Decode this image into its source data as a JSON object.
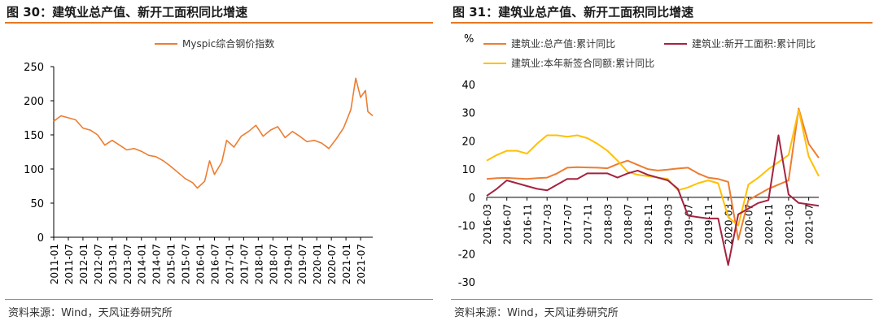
{
  "left": {
    "title": "图 30：建筑业总产值、新开工面积同比增速",
    "source": "资料来源：Wind，天风证券研究所"
  },
  "right": {
    "title": "图 31：建筑业总产值、新开工面积同比增速",
    "source": "资料来源：Wind，天风证券研究所"
  },
  "colors": {
    "accent": "#e87722",
    "series_orange": "#ED7D31",
    "series_red": "#A5233F",
    "series_yellow": "#FFC000"
  },
  "chart_data": [
    {
      "type": "line",
      "title": "",
      "ylim": [
        0,
        250
      ],
      "yticks": [
        0,
        50,
        100,
        150,
        200,
        250
      ],
      "xticks": [
        "2011-01",
        "2011-07",
        "2012-01",
        "2012-07",
        "2013-01",
        "2013-07",
        "2014-01",
        "2014-07",
        "2015-01",
        "2015-07",
        "2016-01",
        "2016-07",
        "2017-01",
        "2017-07",
        "2018-01",
        "2018-07",
        "2019-01",
        "2019-07",
        "2020-01",
        "2020-07",
        "2021-01",
        "2021-07"
      ],
      "legend_position": "top-center",
      "series": [
        {
          "name": "Myspic综合钢价指数",
          "x": [
            "2011-01",
            "2011-04",
            "2011-07",
            "2011-10",
            "2012-01",
            "2012-04",
            "2012-07",
            "2012-10",
            "2013-01",
            "2013-04",
            "2013-07",
            "2013-10",
            "2014-01",
            "2014-04",
            "2014-07",
            "2014-10",
            "2015-01",
            "2015-04",
            "2015-07",
            "2015-10",
            "2015-12",
            "2016-03",
            "2016-05",
            "2016-07",
            "2016-10",
            "2016-12",
            "2017-03",
            "2017-06",
            "2017-09",
            "2017-12",
            "2018-03",
            "2018-06",
            "2018-09",
            "2018-12",
            "2019-03",
            "2019-06",
            "2019-09",
            "2019-12",
            "2020-03",
            "2020-06",
            "2020-09",
            "2020-12",
            "2021-03",
            "2021-05",
            "2021-07",
            "2021-09",
            "2021-10",
            "2021-12"
          ],
          "values": [
            170,
            178,
            175,
            172,
            160,
            157,
            150,
            135,
            142,
            135,
            128,
            130,
            126,
            120,
            118,
            112,
            104,
            95,
            86,
            80,
            72,
            82,
            112,
            92,
            110,
            142,
            132,
            148,
            155,
            164,
            148,
            157,
            162,
            146,
            155,
            148,
            140,
            142,
            138,
            130,
            144,
            160,
            187,
            233,
            205,
            215,
            184,
            178
          ]
        }
      ]
    },
    {
      "type": "line",
      "title": "",
      "ylabel": "%",
      "ylim": [
        -30,
        40
      ],
      "yticks": [
        -30,
        -20,
        -10,
        0,
        10,
        20,
        30,
        40
      ],
      "xticks": [
        "2016-03",
        "2016-07",
        "2016-11",
        "2017-03",
        "2017-07",
        "2017-11",
        "2018-03",
        "2018-07",
        "2018-11",
        "2019-03",
        "2019-07",
        "2019-11",
        "2020-03",
        "2020-07",
        "2020-11",
        "2021-03",
        "2021-07"
      ],
      "legend_position": "top",
      "categories": [
        "2016-03",
        "2016-05",
        "2016-07",
        "2016-09",
        "2016-11",
        "2017-01",
        "2017-03",
        "2017-05",
        "2017-07",
        "2017-09",
        "2017-11",
        "2018-01",
        "2018-03",
        "2018-05",
        "2018-07",
        "2018-09",
        "2018-11",
        "2019-01",
        "2019-03",
        "2019-05",
        "2019-07",
        "2019-09",
        "2019-11",
        "2020-01",
        "2020-03",
        "2020-05",
        "2020-07",
        "2020-09",
        "2020-11",
        "2021-01",
        "2021-03",
        "2021-05",
        "2021-07",
        "2021-09"
      ],
      "series": [
        {
          "name": "建筑业:总产值:累计同比",
          "color_key": "series_orange",
          "values": [
            6.5,
            6.8,
            6.9,
            6.7,
            6.5,
            6.8,
            7.0,
            8.5,
            10.5,
            10.7,
            10.6,
            10.5,
            10.3,
            11.8,
            13.0,
            11.5,
            10.0,
            9.5,
            9.8,
            10.2,
            10.5,
            8.5,
            7.0,
            6.5,
            5.5,
            -15.0,
            -1.0,
            1.0,
            3.0,
            4.5,
            6.0,
            31.5,
            19.0,
            14.0
          ]
        },
        {
          "name": "建筑业:新开工面积:累计同比",
          "color_key": "series_red",
          "values": [
            0.5,
            3.0,
            6.0,
            5.0,
            4.0,
            3.0,
            2.5,
            4.5,
            6.5,
            6.5,
            8.5,
            8.5,
            8.5,
            7.0,
            8.5,
            9.5,
            8.0,
            7.0,
            6.0,
            3.0,
            -6.5,
            -7.0,
            -7.5,
            -7.5,
            -24.0,
            -6.0,
            -4.0,
            -2.0,
            -1.0,
            22.0,
            1.0,
            -2.0,
            -2.5,
            -3.0
          ]
        },
        {
          "name": "建筑业:本年新签合同额:累计同比",
          "color_key": "series_yellow",
          "values": [
            13.0,
            15.0,
            16.5,
            16.5,
            15.5,
            19.0,
            22.0,
            22.0,
            21.5,
            22.0,
            21.0,
            19.0,
            16.5,
            13.0,
            9.0,
            8.0,
            7.5,
            7.0,
            6.5,
            2.5,
            3.5,
            5.0,
            6.0,
            5.0,
            -7.0,
            -10.0,
            4.5,
            7.0,
            10.0,
            12.5,
            15.0,
            31.0,
            14.5,
            7.5
          ]
        }
      ]
    }
  ]
}
